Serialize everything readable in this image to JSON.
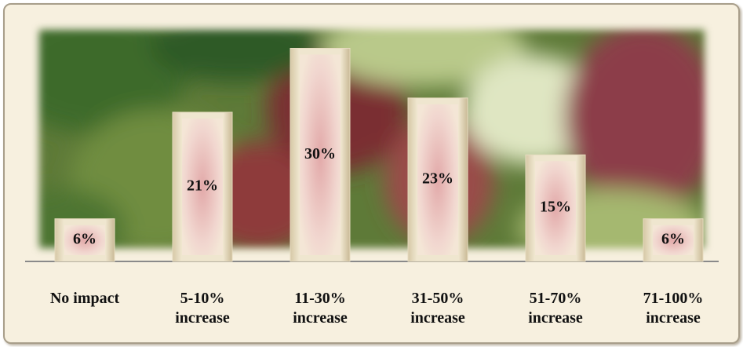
{
  "chart_data": {
    "type": "bar",
    "categories": [
      "No impact",
      "5-10% increase",
      "11-30% increase",
      "31-50% increase",
      "51-70% increase",
      "71-100% increase"
    ],
    "values": [
      6,
      21,
      30,
      23,
      15,
      6
    ],
    "value_labels": [
      "6%",
      "21%",
      "30%",
      "23%",
      "15%",
      "6%"
    ],
    "color": "#e6dbbf"
  }
}
